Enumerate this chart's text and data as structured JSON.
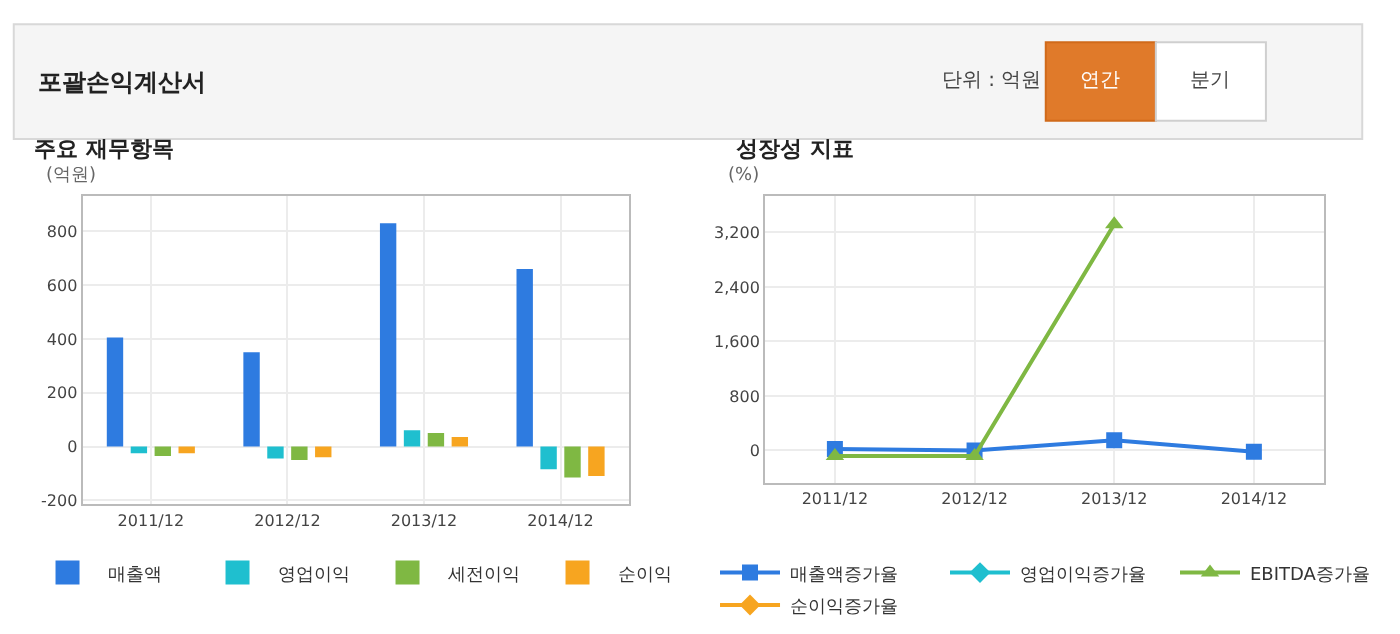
{
  "chart_data": [
    {
      "type": "other",
      "title": "포괄손익계산서",
      "annotations": [
        "단위 : 억원",
        "연간",
        "분기"
      ]
    },
    {
      "type": "bar",
      "title": "주요 재무항목",
      "ylabel": "(억원)",
      "categories": [
        "2011/12",
        "2012/12",
        "2013/12",
        "2014/12"
      ],
      "series": [
        {
          "name": "매출액",
          "color": "#2e7be0",
          "values": [
            405,
            350,
            830,
            660
          ]
        },
        {
          "name": "영업이익",
          "color": "#1fbfcf",
          "values": [
            -25,
            -45,
            60,
            -85
          ]
        },
        {
          "name": "세전이익",
          "color": "#7fb843",
          "values": [
            -35,
            -50,
            50,
            -115
          ]
        },
        {
          "name": "순이익",
          "color": "#f7a520",
          "values": [
            -25,
            -40,
            35,
            -110
          ]
        }
      ],
      "ylim": [
        -215,
        930
      ],
      "yticks": [
        -200,
        0,
        200,
        400,
        600,
        800
      ],
      "grid": true,
      "legend": "bottom"
    },
    {
      "type": "line",
      "title": "성장성 지표",
      "ylabel": "(%)",
      "categories": [
        "2011/12",
        "2012/12",
        "2013/12",
        "2014/12"
      ],
      "series": [
        {
          "name": "매출액증가율",
          "color": "#2e7be0",
          "marker": "square",
          "values": [
            20,
            0,
            150,
            -20
          ]
        },
        {
          "name": "영업이익증가율",
          "color": "#1fbfcf",
          "marker": "diamond",
          "values": [
            null,
            null,
            null,
            null
          ]
        },
        {
          "name": "EBITDA증가율",
          "color": "#7fb843",
          "marker": "triangle",
          "values": [
            -80,
            -80,
            3320,
            null
          ]
        },
        {
          "name": "순이익증가율",
          "color": "#f7a520",
          "marker": "diamond",
          "values": [
            null,
            null,
            null,
            null
          ]
        }
      ],
      "ylim": [
        -480,
        3730
      ],
      "yticks": [
        0,
        800,
        {
          "value": 1600,
          "label": "1,600"
        },
        {
          "value": 2400,
          "label": "2,400"
        },
        {
          "value": 3200,
          "label": "3,200"
        }
      ],
      "grid": true,
      "legend": "bottom"
    }
  ]
}
